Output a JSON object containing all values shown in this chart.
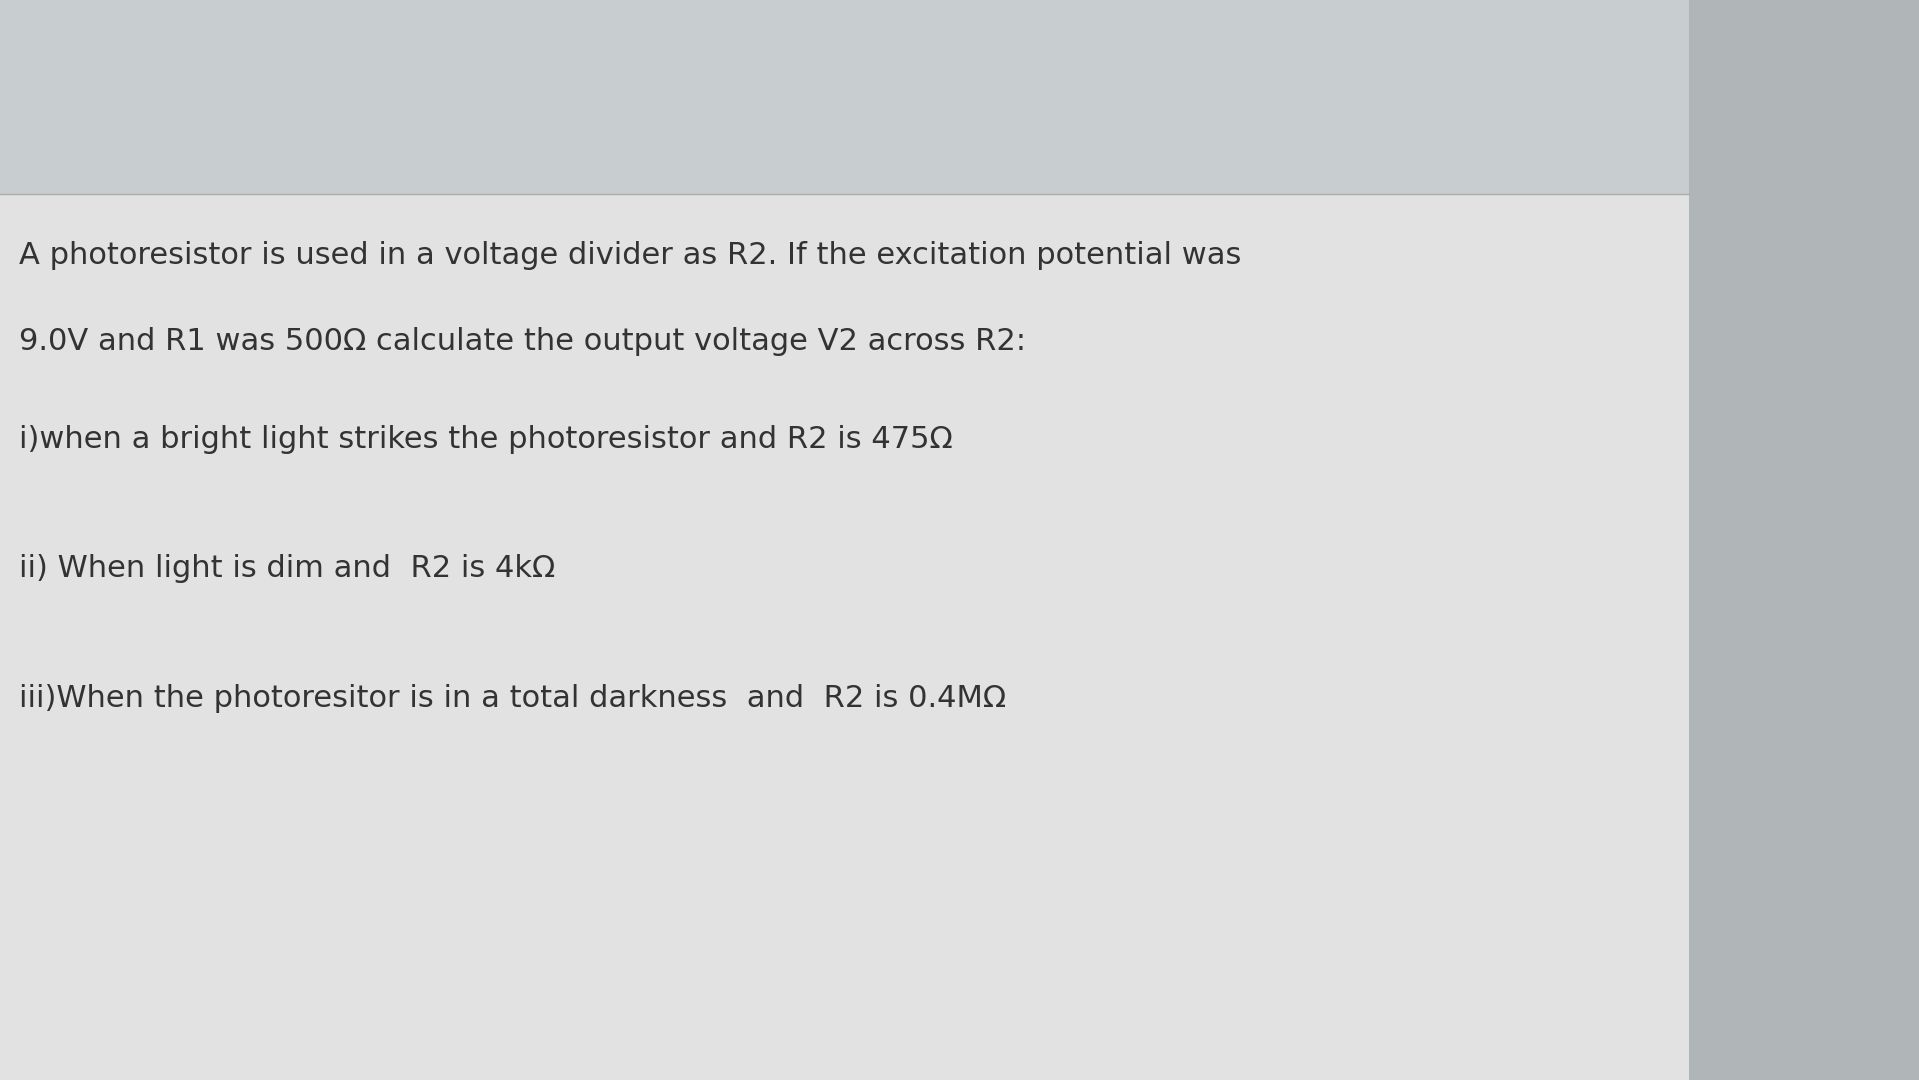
{
  "bg_top": "#c8cdd0",
  "bg_main": "#e2e2e2",
  "bg_right": "#b0b5b8",
  "line_color": "#aaaaaa",
  "text_color": "#333333",
  "line1": "A photoresistor is used in a voltage divider as R2. If the excitation potential was",
  "line2": "9.0V and R1 was 500Ω calculate the output voltage V2 across R2:",
  "line3": "i)when a bright light strikes the photoresistor and R2 is 475Ω",
  "line4": "ii) When light is dim and  R2 is 4kΩ",
  "line5": "iii)When the photoresitor is in a total darkness  and  R2 is 0.4MΩ",
  "font_size_main": 22,
  "font_family": "DejaVu Sans"
}
